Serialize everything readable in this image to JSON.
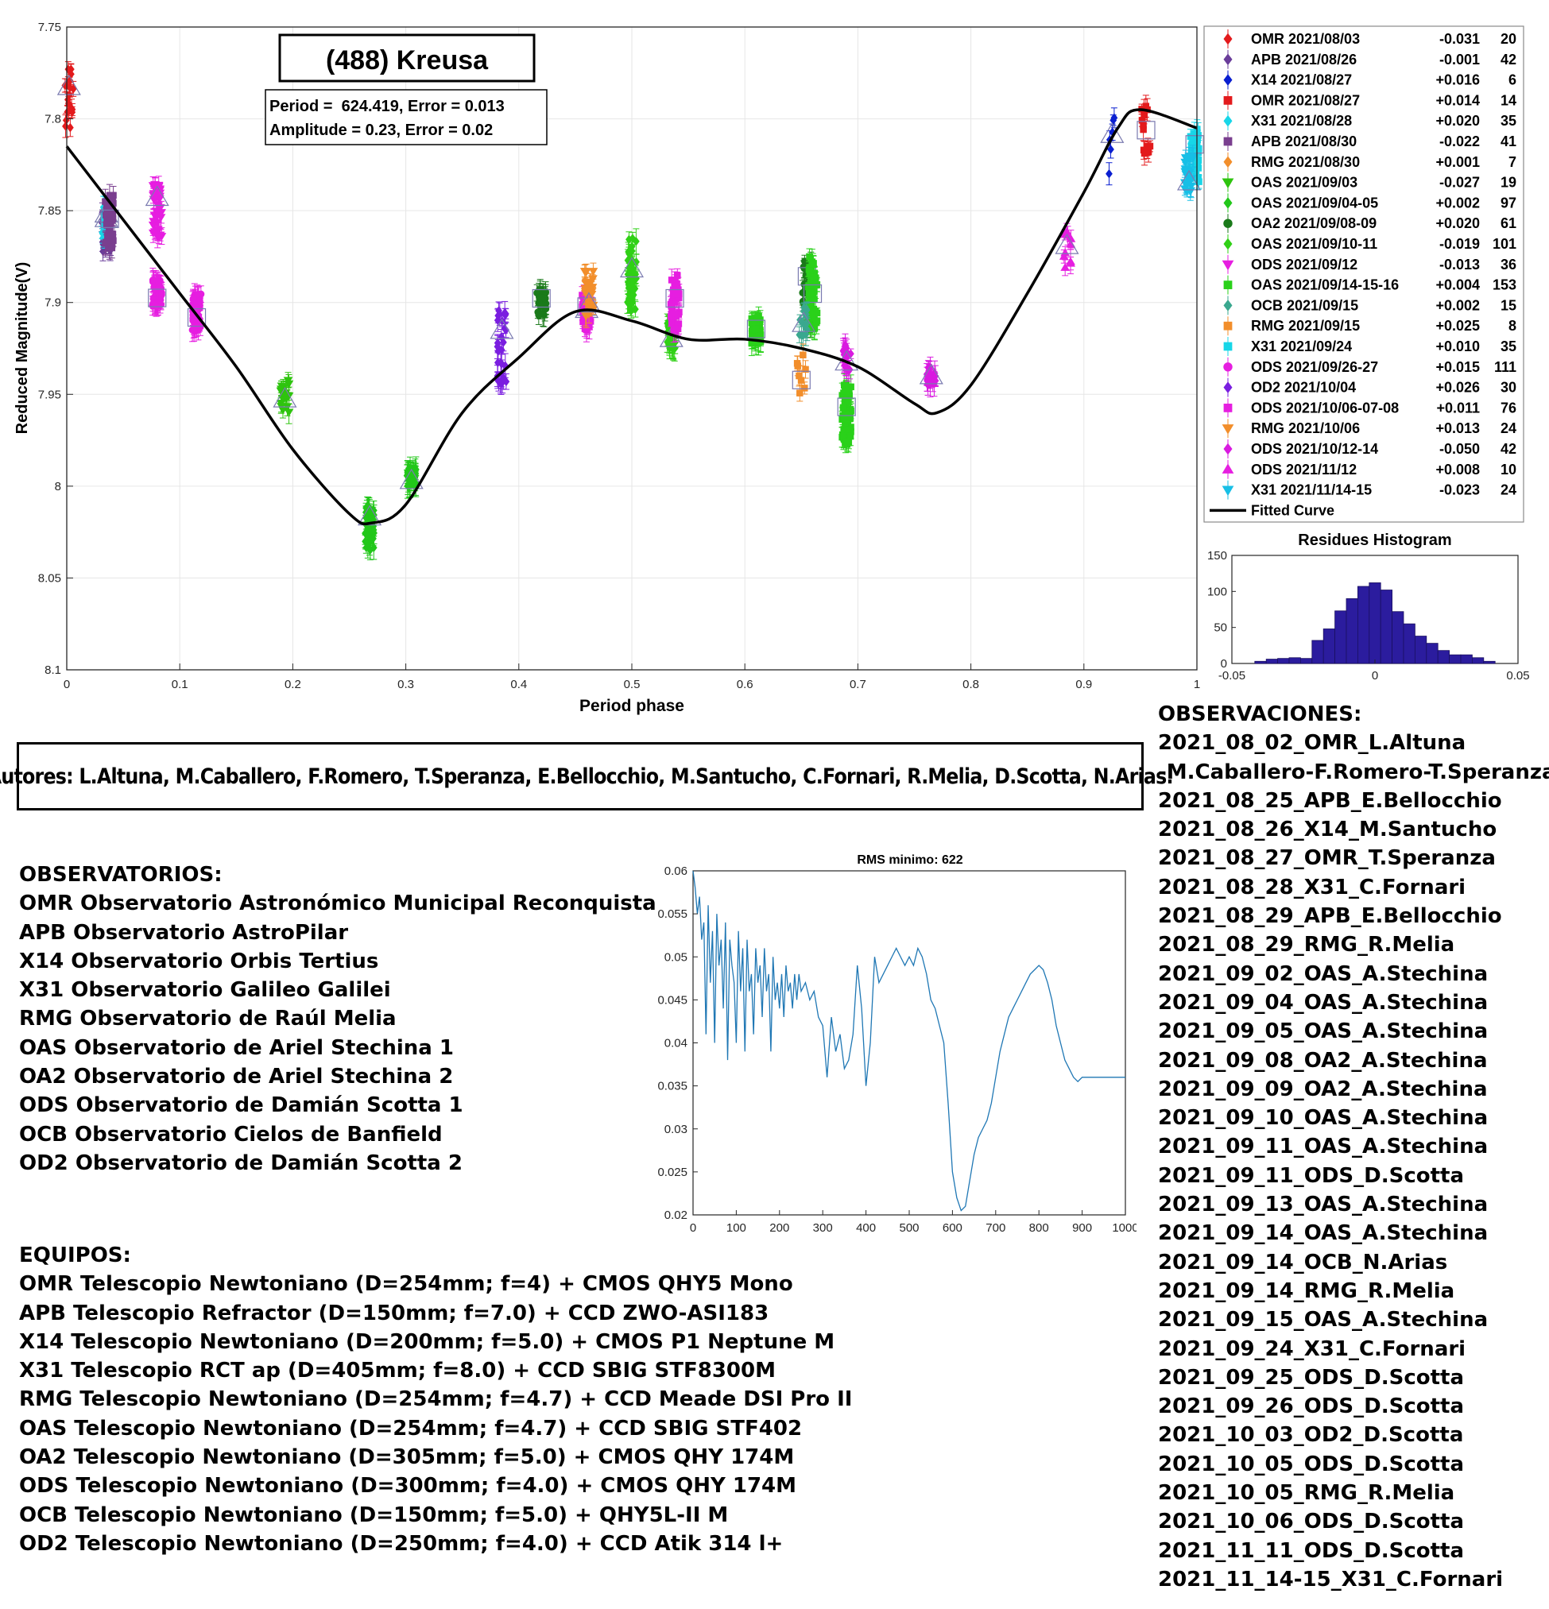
{
  "main_chart": {
    "title": "(488) Kreusa",
    "stats": [
      "Period =  624.419, Error = 0.013",
      "Amplitude = 0.23, Error = 0.02"
    ],
    "xlabel": "Period phase",
    "ylabel": "Reduced Magnitude(V)",
    "xlim": [
      0,
      1
    ],
    "ylim": [
      7.75,
      8.1
    ],
    "y_reversed": true,
    "x_ticks": [
      "0",
      "0.1",
      "0.2",
      "0.3",
      "0.4",
      "0.5",
      "0.6",
      "0.7",
      "0.8",
      "0.9",
      "1"
    ],
    "y_ticks": [
      "7.75",
      "7.8",
      "7.85",
      "7.9",
      "7.95",
      "8",
      "8.05",
      "8.1"
    ],
    "grid": true,
    "legend_placement": "right"
  },
  "chart_data": [
    {
      "type": "scatter",
      "title": "(488) Kreusa",
      "xlabel": "Period phase",
      "ylabel": "Reduced Magnitude(V)",
      "xlim": [
        0,
        1
      ],
      "ylim": [
        7.75,
        8.1
      ],
      "series": [
        {
          "name": "OMR 2021/08/03",
          "offset": "-0.031",
          "n": "20",
          "color": "#e31a1c",
          "marker": "diamond",
          "clusters": [
            [
              0.002,
              7.79,
              0.035
            ]
          ]
        },
        {
          "name": "APB 2021/08/26",
          "offset": "-0.001",
          "n": "42",
          "color": "#6a3d9a",
          "marker": "diamond",
          "clusters": [
            [
              0.035,
              7.86,
              0.025
            ]
          ]
        },
        {
          "name": "X14 2021/08/27",
          "offset": "+0.016",
          "n": "6",
          "color": "#0a1fd0",
          "marker": "diamond",
          "clusters": [
            [
              0.925,
              7.81,
              0.04
            ]
          ]
        },
        {
          "name": "OMR 2021/08/27",
          "offset": "+0.014",
          "n": "14",
          "color": "#e31a1c",
          "marker": "square",
          "clusters": [
            [
              0.955,
              7.806,
              0.035
            ]
          ]
        },
        {
          "name": "X31 2021/08/28",
          "offset": "+0.020",
          "n": "35",
          "color": "#17d6e8",
          "marker": "diamond",
          "clusters": [
            [
              0.035,
              7.855,
              0.02
            ]
          ]
        },
        {
          "name": "APB 2021/08/30",
          "offset": "-0.022",
          "n": "41",
          "color": "#7a3f8f",
          "marker": "square",
          "clusters": [
            [
              0.038,
              7.855,
              0.03
            ]
          ]
        },
        {
          "name": "RMG 2021/08/30",
          "offset": "+0.001",
          "n": "7",
          "color": "#f28e2b",
          "marker": "diamond",
          "clusters": [
            [
              0.46,
              7.9,
              0.025
            ]
          ]
        },
        {
          "name": "OAS 2021/09/03",
          "offset": "-0.027",
          "n": "19",
          "color": "#2ec40e",
          "marker": "triangle-down",
          "clusters": [
            [
              0.193,
              7.95,
              0.02
            ]
          ]
        },
        {
          "name": "OAS 2021/09/04-05",
          "offset": "+0.002",
          "n": "97",
          "color": "#22c71a",
          "marker": "diamond",
          "clusters": [
            [
              0.268,
              8.023,
              0.025
            ],
            [
              0.305,
              7.995,
              0.01
            ]
          ]
        },
        {
          "name": "OA2 2021/09/08-09",
          "offset": "+0.020",
          "n": "61",
          "color": "#1a7a1a",
          "marker": "circle",
          "clusters": [
            [
              0.42,
              7.9,
              0.015
            ],
            [
              0.655,
              7.895,
              0.04
            ]
          ]
        },
        {
          "name": "OAS 2021/09/10-11",
          "offset": "-0.019",
          "n": "101",
          "color": "#30d016",
          "marker": "diamond",
          "clusters": [
            [
              0.5,
              7.885,
              0.04
            ],
            [
              0.535,
              7.918,
              0.015
            ]
          ]
        },
        {
          "name": "ODS 2021/09/12",
          "offset": "-0.013",
          "n": "36",
          "color": "#e61ee0",
          "marker": "triangle-down",
          "clusters": [
            [
              0.08,
              7.85,
              0.03
            ]
          ]
        },
        {
          "name": "OAS 2021/09/14-15-16",
          "offset": "+0.004",
          "n": "153",
          "color": "#2ad11a",
          "marker": "square",
          "clusters": [
            [
              0.61,
              7.915,
              0.015
            ],
            [
              0.69,
              7.96,
              0.035
            ],
            [
              0.66,
              7.895,
              0.04
            ]
          ]
        },
        {
          "name": "OCB 2021/09/15",
          "offset": "+0.002",
          "n": "15",
          "color": "#3aa88f",
          "marker": "diamond",
          "clusters": [
            [
              0.652,
              7.91,
              0.02
            ]
          ]
        },
        {
          "name": "RMG 2021/09/15",
          "offset": "+0.025",
          "n": "8",
          "color": "#f28e2b",
          "marker": "square",
          "clusters": [
            [
              0.65,
              7.94,
              0.03
            ]
          ]
        },
        {
          "name": "X31 2021/09/24",
          "offset": "+0.010",
          "n": "35",
          "color": "#17d6e8",
          "marker": "square",
          "clusters": [
            [
              0.998,
              7.82,
              0.03
            ]
          ]
        },
        {
          "name": "ODS 2021/09/26-27",
          "offset": "+0.015",
          "n": "111",
          "color": "#e61ee0",
          "marker": "circle",
          "clusters": [
            [
              0.115,
              7.905,
              0.02
            ],
            [
              0.08,
              7.895,
              0.015
            ]
          ]
        },
        {
          "name": "OD2 2021/10/04",
          "offset": "+0.026",
          "n": "30",
          "color": "#7a1ee0",
          "marker": "diamond",
          "clusters": [
            [
              0.385,
              7.925,
              0.045
            ]
          ]
        },
        {
          "name": "ODS 2021/10/06-07-08",
          "offset": "+0.011",
          "n": "76",
          "color": "#e61ee0",
          "marker": "square",
          "clusters": [
            [
              0.538,
              7.9,
              0.03
            ],
            [
              0.46,
              7.905,
              0.02
            ]
          ]
        },
        {
          "name": "RMG 2021/10/06",
          "offset": "+0.013",
          "n": "24",
          "color": "#f28e2b",
          "marker": "triangle-down",
          "clusters": [
            [
              0.462,
              7.895,
              0.025
            ]
          ]
        },
        {
          "name": "ODS 2021/10/12-14",
          "offset": "-0.050",
          "n": "42",
          "color": "#d91ae0",
          "marker": "diamond",
          "clusters": [
            [
              0.765,
              7.94,
              0.01
            ],
            [
              0.69,
              7.93,
              0.015
            ]
          ]
        },
        {
          "name": "ODS 2021/11/12",
          "offset": "+0.008",
          "n": "10",
          "color": "#e61ee0",
          "marker": "triangle-up",
          "clusters": [
            [
              0.885,
              7.87,
              0.025
            ]
          ]
        },
        {
          "name": "X31 2021/11/14-15",
          "offset": "-0.023",
          "n": "24",
          "color": "#17bfe6",
          "marker": "triangle-down",
          "clusters": [
            [
              0.993,
              7.83,
              0.02
            ]
          ]
        }
      ],
      "fitted_curve": {
        "name": "Fitted Curve",
        "x": [
          0,
          0.05,
          0.1,
          0.15,
          0.2,
          0.25,
          0.27,
          0.3,
          0.35,
          0.4,
          0.45,
          0.5,
          0.55,
          0.6,
          0.65,
          0.7,
          0.75,
          0.77,
          0.8,
          0.85,
          0.9,
          0.93,
          0.95,
          1.0
        ],
        "y": [
          7.815,
          7.855,
          7.895,
          7.935,
          7.98,
          8.015,
          8.02,
          8.01,
          7.96,
          7.93,
          7.905,
          7.91,
          7.92,
          7.92,
          7.925,
          7.935,
          7.955,
          7.96,
          7.945,
          7.895,
          7.84,
          7.805,
          7.795,
          7.805
        ]
      }
    },
    {
      "type": "bar",
      "title": "Residues Histogram",
      "x_ticks": [
        "-0.05",
        "0",
        "0.05"
      ],
      "y_ticks": [
        "0",
        "50",
        "100",
        "150"
      ],
      "xlim": [
        -0.05,
        0.05
      ],
      "ylim": [
        0,
        150
      ],
      "bin_width": 0.004,
      "bin_centers": [
        -0.04,
        -0.036,
        -0.032,
        -0.028,
        -0.024,
        -0.02,
        -0.016,
        -0.012,
        -0.008,
        -0.004,
        0,
        0.004,
        0.008,
        0.012,
        0.016,
        0.02,
        0.024,
        0.028,
        0.032,
        0.036,
        0.04
      ],
      "values": [
        3,
        6,
        7,
        8,
        7,
        32,
        48,
        73,
        90,
        107,
        112,
        102,
        72,
        55,
        38,
        28,
        18,
        12,
        12,
        8,
        3
      ],
      "color": "#2b1c9e"
    },
    {
      "type": "line",
      "title": "RMS minimo: 622",
      "x_ticks": [
        "0",
        "100",
        "200",
        "300",
        "400",
        "500",
        "600",
        "700",
        "800",
        "900",
        "1000"
      ],
      "y_ticks": [
        "0.02",
        "0.025",
        "0.03",
        "0.035",
        "0.04",
        "0.045",
        "0.05",
        "0.055",
        "0.06"
      ],
      "xlim": [
        0,
        1000
      ],
      "ylim": [
        0.02,
        0.06
      ],
      "color": "#1f77b4",
      "x": [
        0,
        5,
        10,
        15,
        20,
        25,
        30,
        35,
        40,
        45,
        50,
        55,
        60,
        65,
        70,
        75,
        80,
        85,
        90,
        95,
        100,
        105,
        110,
        115,
        120,
        125,
        130,
        135,
        140,
        145,
        150,
        155,
        160,
        165,
        170,
        175,
        180,
        185,
        190,
        195,
        200,
        205,
        210,
        215,
        220,
        225,
        230,
        235,
        240,
        245,
        250,
        260,
        270,
        280,
        290,
        300,
        310,
        320,
        330,
        340,
        350,
        360,
        370,
        380,
        390,
        400,
        410,
        420,
        430,
        440,
        450,
        460,
        470,
        480,
        490,
        500,
        510,
        520,
        530,
        540,
        550,
        560,
        570,
        580,
        590,
        600,
        610,
        620,
        630,
        640,
        650,
        660,
        670,
        680,
        690,
        700,
        710,
        720,
        730,
        740,
        750,
        760,
        770,
        780,
        790,
        800,
        810,
        820,
        830,
        840,
        850,
        860,
        870,
        880,
        890,
        900,
        910,
        920,
        930,
        940,
        950,
        960,
        970,
        980,
        990,
        1000
      ],
      "y": [
        0.06,
        0.058,
        0.055,
        0.057,
        0.052,
        0.054,
        0.041,
        0.056,
        0.047,
        0.053,
        0.04,
        0.055,
        0.049,
        0.052,
        0.044,
        0.054,
        0.038,
        0.052,
        0.049,
        0.047,
        0.04,
        0.053,
        0.046,
        0.051,
        0.039,
        0.052,
        0.046,
        0.048,
        0.041,
        0.051,
        0.047,
        0.049,
        0.043,
        0.051,
        0.046,
        0.048,
        0.039,
        0.05,
        0.045,
        0.047,
        0.044,
        0.048,
        0.043,
        0.049,
        0.046,
        0.047,
        0.044,
        0.048,
        0.045,
        0.048,
        0.046,
        0.047,
        0.045,
        0.046,
        0.043,
        0.042,
        0.036,
        0.043,
        0.039,
        0.041,
        0.037,
        0.038,
        0.041,
        0.049,
        0.044,
        0.035,
        0.04,
        0.05,
        0.047,
        0.048,
        0.049,
        0.05,
        0.051,
        0.05,
        0.049,
        0.05,
        0.049,
        0.051,
        0.05,
        0.048,
        0.045,
        0.044,
        0.042,
        0.04,
        0.033,
        0.025,
        0.022,
        0.0205,
        0.021,
        0.024,
        0.027,
        0.029,
        0.03,
        0.031,
        0.033,
        0.036,
        0.039,
        0.041,
        0.043,
        0.044,
        0.045,
        0.046,
        0.047,
        0.048,
        0.0485,
        0.049,
        0.0485,
        0.047,
        0.045,
        0.042,
        0.04,
        0.038,
        0.037,
        0.036,
        0.0355,
        0.036,
        0.036,
        0.036,
        0.036,
        0.036,
        0.036,
        0.036,
        0.036,
        0.036,
        0.036,
        0.036
      ]
    }
  ],
  "histogram": {
    "title": "Residues Histogram",
    "x_ticks": [
      "-0.05",
      "0",
      "0.05"
    ],
    "y_ticks": [
      "0",
      "50",
      "100",
      "150"
    ]
  },
  "rms_chart": {
    "title": "RMS minimo: 622",
    "x_ticks": [
      "0",
      "100",
      "200",
      "300",
      "400",
      "500",
      "600",
      "700",
      "800",
      "900",
      "1000"
    ],
    "y_ticks": [
      "0.02",
      "0.025",
      "0.03",
      "0.035",
      "0.04",
      "0.045",
      "0.05",
      "0.055",
      "0.06"
    ]
  },
  "legend_fitted": "Fitted Curve",
  "authors": "Autores: L.Altuna, M.Caballero, F.Romero, T.Speranza, E.Bellocchio, M.Santucho, C.Fornari, R.Melia, D.Scotta, N.Arias.",
  "observatorios": {
    "heading": "OBSERVATORIOS:",
    "items": [
      "OMR Observatorio Astronómico Municipal Reconquista",
      "APB Observatorio AstroPilar",
      "X14 Observatorio Orbis Tertius",
      "X31 Observatorio Galileo Galilei",
      "RMG Observatorio de Raúl Melia",
      "OAS Observatorio de Ariel Stechina 1",
      "OA2 Observatorio de Ariel Stechina 2",
      "ODS Observatorio de Damián Scotta 1",
      "OCB Observatorio Cielos de Banfield",
      "OD2 Observatorio de Damián Scotta 2"
    ]
  },
  "equipos": {
    "heading": "EQUIPOS:",
    "items": [
      "OMR Telescopio Newtoniano (D=254mm; f=4) + CMOS QHY5 Mono",
      "APB Telescopio Refractor (D=150mm; f=7.0) + CCD ZWO-ASI183",
      "X14 Telescopio Newtoniano (D=200mm; f=5.0) + CMOS P1 Neptune M",
      "X31 Telescopio RCT ap (D=405mm; f=8.0) + CCD SBIG STF8300M",
      "RMG Telescopio Newtoniano (D=254mm; f=4.7) + CCD Meade DSI Pro II",
      "OAS Telescopio Newtoniano (D=254mm; f=4.7) + CCD SBIG STF402",
      "OA2 Telescopio Newtoniano (D=305mm; f=5.0) + CMOS QHY 174M",
      "ODS Telescopio Newtoniano (D=300mm; f=4.0) + CMOS QHY 174M",
      "OCB Telescopio Newtoniano (D=150mm; f=5.0) + QHY5L-II M",
      "OD2 Telescopio Newtoniano (D=250mm; f=4.0) + CCD Atik 314 l+"
    ]
  },
  "observaciones": {
    "heading": "OBSERVACIONES:",
    "items": [
      "2021_08_02_OMR_L.Altuna",
      "-M.Caballero-F.Romero-T.Speranza",
      "2021_08_25_APB_E.Bellocchio",
      "2021_08_26_X14_M.Santucho",
      "2021_08_27_OMR_T.Speranza",
      "2021_08_28_X31_C.Fornari",
      "2021_08_29_APB_E.Bellocchio",
      "2021_08_29_RMG_R.Melia",
      "2021_09_02_OAS_A.Stechina",
      "2021_09_04_OAS_A.Stechina",
      "2021_09_05_OAS_A.Stechina",
      "2021_09_08_OA2_A.Stechina",
      "2021_09_09_OA2_A.Stechina",
      "2021_09_10_OAS_A.Stechina",
      "2021_09_11_OAS_A.Stechina",
      "2021_09_11_ODS_D.Scotta",
      "2021_09_13_OAS_A.Stechina",
      "2021_09_14_OAS_A.Stechina",
      "2021_09_14_OCB_N.Arias",
      "2021_09_14_RMG_R.Melia",
      "2021_09_15_OAS_A.Stechina",
      "2021_09_24_X31_C.Fornari",
      "2021_09_25_ODS_D.Scotta",
      "2021_09_26_ODS_D.Scotta",
      "2021_10_03_OD2_D.Scotta",
      "2021_10_05_ODS_D.Scotta",
      "2021_10_05_RMG_R.Melia",
      "2021_10_06_ODS_D.Scotta",
      "2021_11_11_ODS_D.Scotta",
      "2021_11_14-15_X31_C.Fornari"
    ]
  }
}
